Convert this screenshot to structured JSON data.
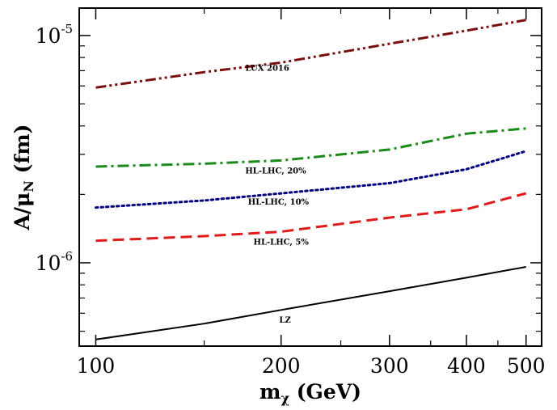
{
  "chart_data": {
    "type": "line",
    "title": "",
    "xlabel": {
      "main": "m",
      "sub": "χ",
      "rest": " (GeV)"
    },
    "ylabel": {
      "main": "A/μ",
      "sub": "N",
      "rest": " (fm)"
    },
    "xscale": "log",
    "yscale": "log",
    "xlim": [
      94,
      530
    ],
    "ylim": [
      4.3e-07,
      1.32e-05
    ],
    "grid": false,
    "legend": "inline labels",
    "x_ticks": [
      {
        "value": 100,
        "label": "100"
      },
      {
        "value": 200,
        "label": "200"
      },
      {
        "value": 300,
        "label": "300"
      },
      {
        "value": 400,
        "label": "400"
      },
      {
        "value": 500,
        "label": "500"
      }
    ],
    "x_minor_ticks": [
      150,
      250,
      350,
      450
    ],
    "y_ticks": [
      {
        "value": 1e-06,
        "base": "10",
        "exp": "-6"
      },
      {
        "value": 1e-05,
        "base": "10",
        "exp": "-5"
      }
    ],
    "y_minor_ticks": [
      5e-07,
      6e-07,
      7e-07,
      8e-07,
      9e-07,
      2e-06,
      3e-06,
      4e-06,
      5e-06,
      6e-06,
      7e-06,
      8e-06,
      9e-06
    ],
    "series": [
      {
        "name": "LUX 2016",
        "color": "#7a0f0f",
        "dash": "dash-dot-dot",
        "x": [
          100,
          150,
          200,
          300,
          400,
          500
        ],
        "y": [
          5.9e-06,
          6.9e-06,
          7.6e-06,
          9.2e-06,
          1.05e-05,
          1.17e-05
        ],
        "label_at": {
          "x": 190,
          "y": 7e-06
        }
      },
      {
        "name": "HL-LHC, 20%",
        "color": "#1a8a1a",
        "dash": "dash-dot",
        "x": [
          100,
          150,
          200,
          300,
          400,
          500
        ],
        "y": [
          2.65e-06,
          2.73e-06,
          2.82e-06,
          3.15e-06,
          3.7e-06,
          3.9e-06
        ],
        "label_at": {
          "x": 196,
          "y": 2.47e-06
        }
      },
      {
        "name": "HL-LHC, 10%",
        "color": "#000080",
        "dash": "dotted",
        "x": [
          100,
          150,
          200,
          300,
          400,
          500
        ],
        "y": [
          1.75e-06,
          1.88e-06,
          2.02e-06,
          2.24e-06,
          2.58e-06,
          3.1e-06
        ],
        "label_at": {
          "x": 198,
          "y": 1.8e-06
        }
      },
      {
        "name": "HL-LHC, 5%",
        "color": "#e01b1b",
        "dash": "dashed",
        "x": [
          100,
          150,
          200,
          300,
          400,
          500
        ],
        "y": [
          1.25e-06,
          1.31e-06,
          1.37e-06,
          1.58e-06,
          1.72e-06,
          2.02e-06
        ],
        "label_at": {
          "x": 200,
          "y": 1.2e-06
        }
      },
      {
        "name": "LZ",
        "color": "#000000",
        "dash": "solid",
        "x": [
          100,
          150,
          200,
          300,
          400,
          500
        ],
        "y": [
          4.6e-07,
          5.4e-07,
          6.2e-07,
          7.5e-07,
          8.6e-07,
          9.6e-07
        ],
        "label_at": {
          "x": 203,
          "y": 5.45e-07
        }
      }
    ]
  }
}
